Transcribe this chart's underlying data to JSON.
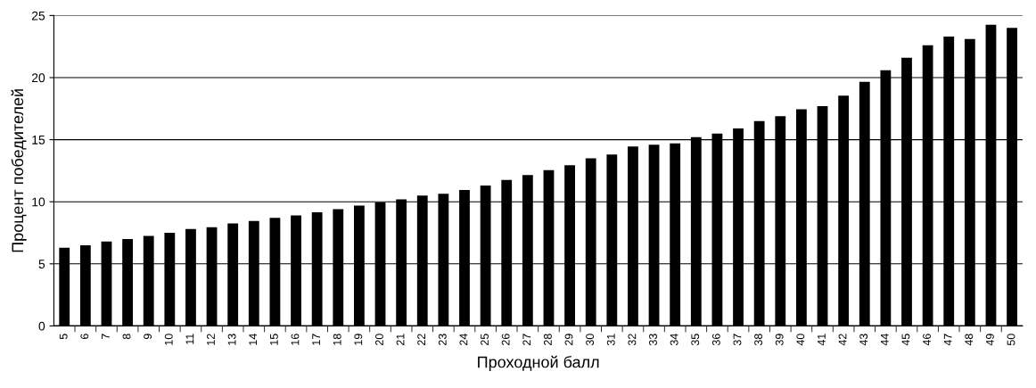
{
  "chart_data": {
    "type": "bar",
    "xlabel": "Проходной балл",
    "ylabel": "Процент победителей",
    "categories": [
      "5",
      "6",
      "7",
      "8",
      "9",
      "10",
      "11",
      "12",
      "13",
      "14",
      "15",
      "16",
      "17",
      "18",
      "19",
      "20",
      "21",
      "22",
      "23",
      "24",
      "25",
      "26",
      "27",
      "28",
      "29",
      "30",
      "31",
      "32",
      "33",
      "34",
      "35",
      "36",
      "37",
      "38",
      "39",
      "40",
      "41",
      "42",
      "43",
      "44",
      "45",
      "46",
      "47",
      "48",
      "49",
      "50"
    ],
    "values": [
      6.3,
      6.5,
      6.8,
      7.0,
      7.25,
      7.5,
      7.8,
      7.95,
      8.25,
      8.45,
      8.7,
      8.9,
      9.15,
      9.4,
      9.7,
      9.95,
      10.2,
      10.5,
      10.65,
      10.95,
      11.3,
      11.75,
      12.15,
      12.55,
      12.95,
      13.5,
      13.8,
      14.45,
      14.6,
      14.7,
      15.2,
      15.5,
      15.9,
      16.5,
      16.9,
      17.45,
      17.7,
      18.55,
      19.65,
      20.6,
      21.6,
      22.6,
      23.3,
      23.1,
      24.25,
      24.0
    ],
    "color": "#000000",
    "ylim": [
      0,
      25
    ],
    "yticks": [
      0,
      5,
      10,
      15,
      20,
      25
    ],
    "grid": "y"
  }
}
